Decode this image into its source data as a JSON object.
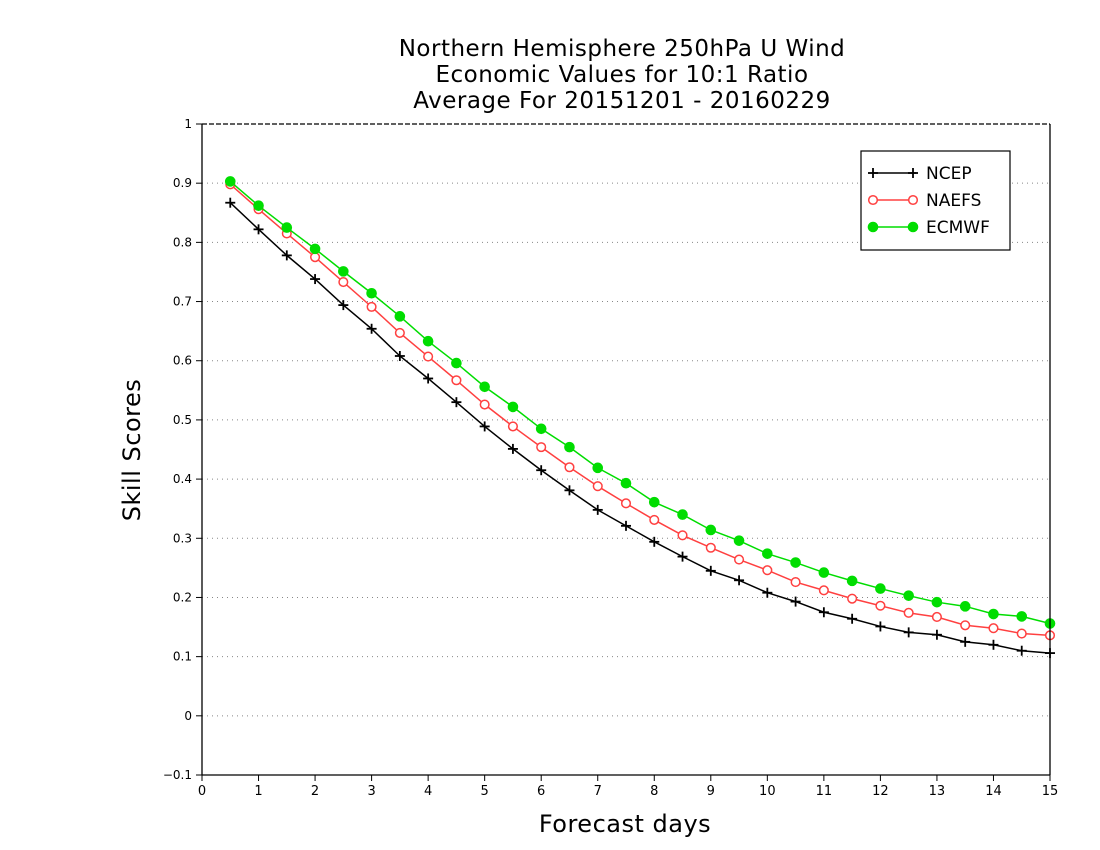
{
  "chart_data": {
    "type": "line",
    "title_lines": [
      "Northern Hemisphere 250hPa U Wind",
      "Economic Values for 10:1 Ratio",
      "Average For 20151201 - 20160229"
    ],
    "xlabel": "Forecast days",
    "ylabel": "Skill Scores",
    "xlim": [
      0,
      15
    ],
    "ylim": [
      -0.1,
      1
    ],
    "xticks": [
      0,
      1,
      2,
      3,
      4,
      5,
      6,
      7,
      8,
      9,
      10,
      11,
      12,
      13,
      14,
      15
    ],
    "yticks": [
      -0.1,
      0,
      0.1,
      0.2,
      0.3,
      0.4,
      0.5,
      0.6,
      0.7,
      0.8,
      0.9,
      1
    ],
    "ytick_labels": [
      "−0.1",
      "0",
      "0.1",
      "0.2",
      "0.3",
      "0.4",
      "0.5",
      "0.6",
      "0.7",
      "0.8",
      "0.9",
      "1"
    ],
    "grid": "horizontal-dotted",
    "legend_position": "top-right",
    "x": [
      0.5,
      1,
      1.5,
      2,
      2.5,
      3,
      3.5,
      4,
      4.5,
      5,
      5.5,
      6,
      6.5,
      7,
      7.5,
      8,
      8.5,
      9,
      9.5,
      10,
      10.5,
      11,
      11.5,
      12,
      12.5,
      13,
      13.5,
      14,
      14.5,
      15
    ],
    "series": [
      {
        "name": "NCEP",
        "color": "#000000",
        "marker": "plus",
        "values": [
          0.867,
          0.822,
          0.778,
          0.738,
          0.694,
          0.654,
          0.608,
          0.57,
          0.53,
          0.489,
          0.451,
          0.415,
          0.381,
          0.348,
          0.321,
          0.294,
          0.269,
          0.245,
          0.229,
          0.208,
          0.193,
          0.175,
          0.164,
          0.151,
          0.141,
          0.137,
          0.125,
          0.12,
          0.11,
          0.106
        ]
      },
      {
        "name": "NAEFS",
        "color": "#ff4040",
        "marker": "open-circle",
        "values": [
          0.898,
          0.856,
          0.815,
          0.775,
          0.733,
          0.691,
          0.647,
          0.607,
          0.567,
          0.526,
          0.489,
          0.454,
          0.42,
          0.388,
          0.359,
          0.331,
          0.305,
          0.284,
          0.264,
          0.246,
          0.226,
          0.212,
          0.198,
          0.186,
          0.174,
          0.167,
          0.153,
          0.148,
          0.139,
          0.136
        ]
      },
      {
        "name": "ECMWF",
        "color": "#00dd00",
        "marker": "filled-circle",
        "values": [
          0.903,
          0.862,
          0.825,
          0.789,
          0.751,
          0.714,
          0.675,
          0.633,
          0.596,
          0.556,
          0.522,
          0.485,
          0.454,
          0.419,
          0.393,
          0.361,
          0.34,
          0.314,
          0.296,
          0.274,
          0.259,
          0.242,
          0.228,
          0.215,
          0.203,
          0.192,
          0.185,
          0.172,
          0.168,
          0.156
        ]
      }
    ]
  }
}
